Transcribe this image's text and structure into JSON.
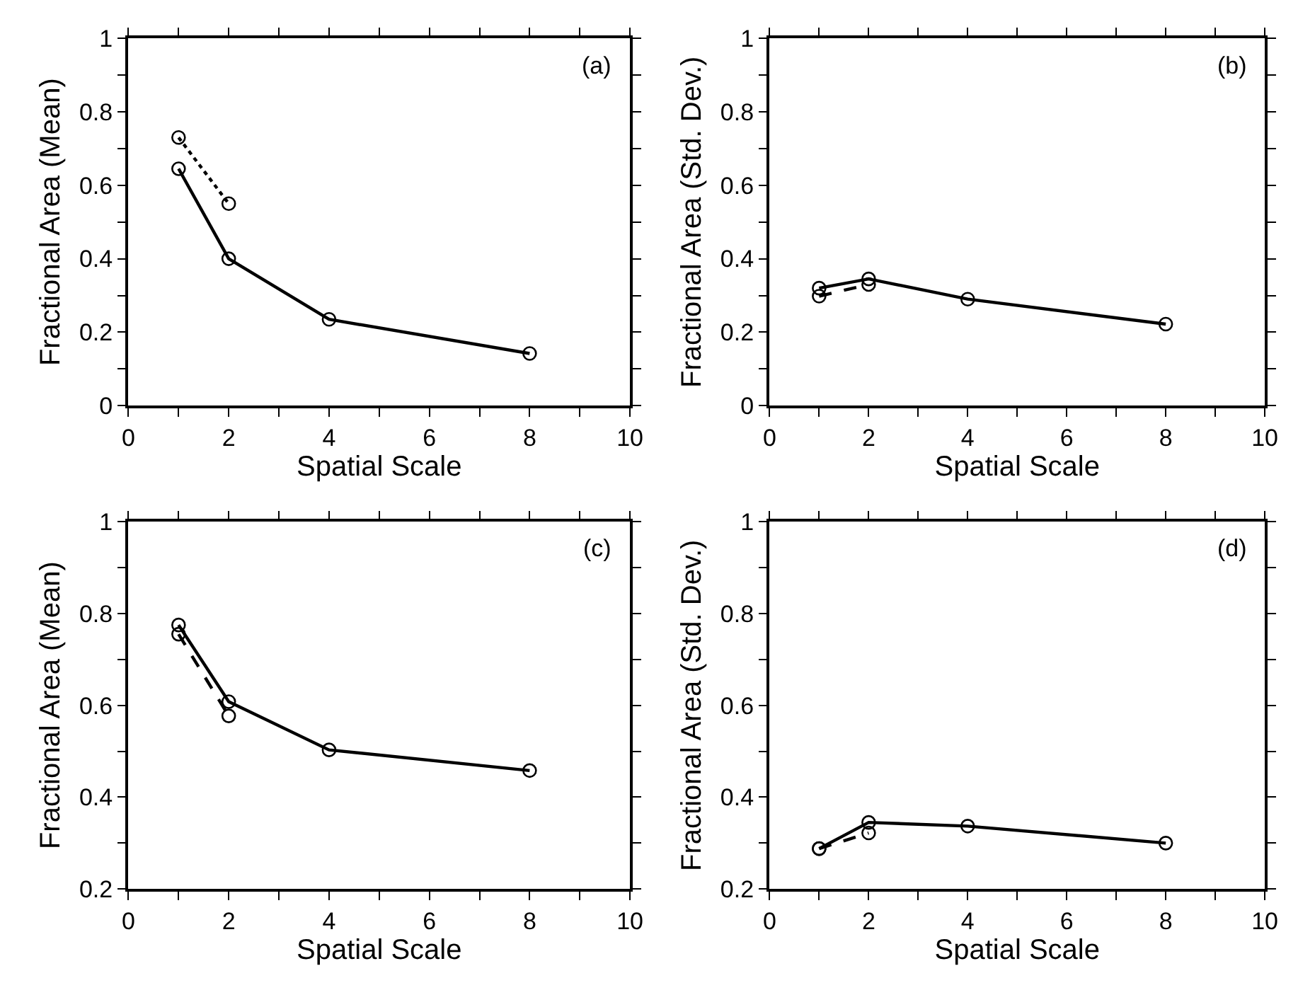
{
  "chart_data": [
    {
      "type": "line",
      "xlabel": "Spatial Scale",
      "ylabel": "Fractional Area (Mean)",
      "annotations": [
        "(a)"
      ],
      "marker": "circle",
      "xlim": [
        0,
        10
      ],
      "ylim": [
        0,
        1
      ],
      "xticks": [
        0,
        {
          "value": 1,
          "label": null
        },
        2,
        {
          "value": 3,
          "label": null
        },
        4,
        {
          "value": 5,
          "label": null
        },
        6,
        {
          "value": 7,
          "label": null
        },
        8,
        {
          "value": 9,
          "label": null
        },
        10
      ],
      "yticks": [
        0,
        {
          "value": 0.1,
          "label": null
        },
        0.2,
        {
          "value": 0.3,
          "label": null
        },
        0.4,
        {
          "value": 0.5,
          "label": null
        },
        0.6,
        {
          "value": 0.7,
          "label": null
        },
        0.8,
        {
          "value": 0.9,
          "label": null
        },
        1
      ],
      "series": [
        {
          "color": "#000000",
          "line_style": "solid",
          "x": [
            1,
            2,
            4,
            8
          ],
          "values": [
            0.645,
            0.4,
            0.235,
            0.142
          ]
        },
        {
          "color": "#000000",
          "line_style": "dotted",
          "x": [
            1,
            2
          ],
          "values": [
            0.73,
            0.55
          ]
        }
      ]
    },
    {
      "type": "line",
      "xlabel": "Spatial Scale",
      "ylabel": "Fractional Area (Std. Dev.)",
      "annotations": [
        "(b)"
      ],
      "marker": "circle",
      "xlim": [
        0,
        10
      ],
      "ylim": [
        0,
        1
      ],
      "xticks": [
        0,
        {
          "value": 1,
          "label": null
        },
        2,
        {
          "value": 3,
          "label": null
        },
        4,
        {
          "value": 5,
          "label": null
        },
        6,
        {
          "value": 7,
          "label": null
        },
        8,
        {
          "value": 9,
          "label": null
        },
        10
      ],
      "yticks": [
        0,
        {
          "value": 0.1,
          "label": null
        },
        0.2,
        {
          "value": 0.3,
          "label": null
        },
        0.4,
        {
          "value": 0.5,
          "label": null
        },
        0.6,
        {
          "value": 0.7,
          "label": null
        },
        0.8,
        {
          "value": 0.9,
          "label": null
        },
        1
      ],
      "series": [
        {
          "color": "#000000",
          "line_style": "solid",
          "x": [
            1,
            2,
            4,
            8
          ],
          "values": [
            0.32,
            0.345,
            0.29,
            0.222
          ]
        },
        {
          "color": "#000000",
          "line_style": "dashed",
          "x": [
            1,
            2
          ],
          "values": [
            0.298,
            0.33
          ]
        }
      ]
    },
    {
      "type": "line",
      "xlabel": "Spatial Scale",
      "ylabel": "Fractional Area (Mean)",
      "annotations": [
        "(c)"
      ],
      "marker": "circle",
      "xlim": [
        0,
        10
      ],
      "ylim": [
        0.2,
        1
      ],
      "xticks": [
        0,
        {
          "value": 1,
          "label": null
        },
        2,
        {
          "value": 3,
          "label": null
        },
        4,
        {
          "value": 5,
          "label": null
        },
        6,
        {
          "value": 7,
          "label": null
        },
        8,
        {
          "value": 9,
          "label": null
        },
        10
      ],
      "yticks": [
        0.2,
        {
          "value": 0.3,
          "label": null
        },
        0.4,
        {
          "value": 0.5,
          "label": null
        },
        0.6,
        {
          "value": 0.7,
          "label": null
        },
        0.8,
        {
          "value": 0.9,
          "label": null
        },
        1
      ],
      "series": [
        {
          "color": "#000000",
          "line_style": "solid",
          "x": [
            1,
            2,
            4,
            8
          ],
          "values": [
            0.775,
            0.608,
            0.503,
            0.458
          ]
        },
        {
          "color": "#000000",
          "line_style": "dashed",
          "x": [
            1,
            2
          ],
          "values": [
            0.755,
            0.577
          ]
        }
      ]
    },
    {
      "type": "line",
      "xlabel": "Spatial Scale",
      "ylabel": "Fractional Area (Std. Dev.)",
      "annotations": [
        "(d)"
      ],
      "marker": "circle",
      "xlim": [
        0,
        10
      ],
      "ylim": [
        0.2,
        1
      ],
      "xticks": [
        0,
        {
          "value": 1,
          "label": null
        },
        2,
        {
          "value": 3,
          "label": null
        },
        4,
        {
          "value": 5,
          "label": null
        },
        6,
        {
          "value": 7,
          "label": null
        },
        8,
        {
          "value": 9,
          "label": null
        },
        10
      ],
      "yticks": [
        0.2,
        {
          "value": 0.3,
          "label": null
        },
        0.4,
        {
          "value": 0.5,
          "label": null
        },
        0.6,
        {
          "value": 0.7,
          "label": null
        },
        0.8,
        {
          "value": 0.9,
          "label": null
        },
        1
      ],
      "series": [
        {
          "color": "#000000",
          "line_style": "solid",
          "x": [
            1,
            2,
            4,
            8
          ],
          "values": [
            0.288,
            0.345,
            0.337,
            0.3
          ]
        },
        {
          "color": "#000000",
          "line_style": "dashed",
          "x": [
            1,
            2
          ],
          "values": [
            0.288,
            0.322
          ]
        }
      ]
    }
  ]
}
